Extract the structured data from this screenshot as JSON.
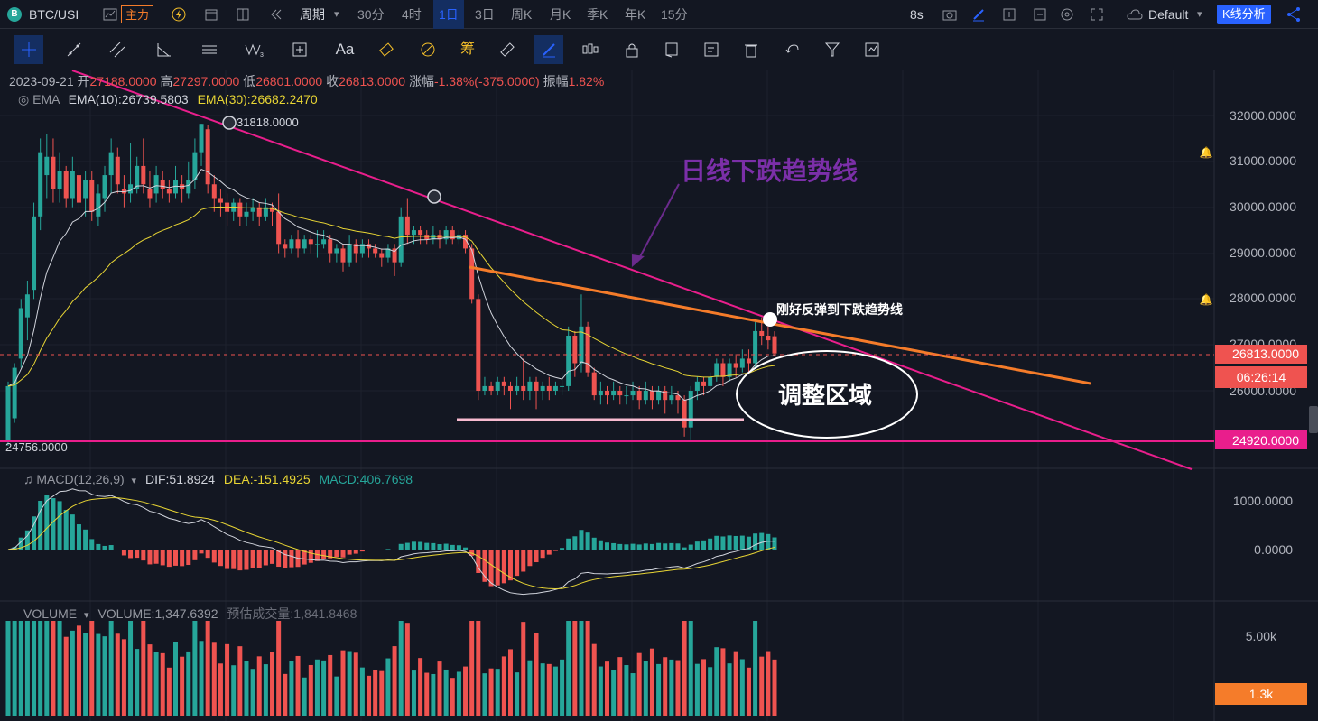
{
  "topbar": {
    "symbol": "BTC/USI",
    "main_indicator": "主力",
    "period_label": "周期",
    "intervals": [
      "30分",
      "4时",
      "1日",
      "3日",
      "周K",
      "月K",
      "季K",
      "年K",
      "15分"
    ],
    "active_interval": "1日",
    "refresh": "8s",
    "layout": "Default",
    "analysis_button": "K线分析"
  },
  "tools": [
    "crosshair-icon",
    "trendline-icon",
    "parallel-channel-icon",
    "angle-icon",
    "horizontal-lines-icon",
    "wave-icon",
    "measure-icon",
    "text-icon",
    "eraser-icon",
    "magnet-icon",
    "fib-icon",
    "ruler-icon",
    "brush-icon",
    "candles-icon",
    "lock-icon",
    "copy-icon",
    "note-icon",
    "trash-icon",
    "undo-icon",
    "filter-icon",
    "snapshot-icon"
  ],
  "text_tool": "Aa",
  "fib_tool": "筹",
  "ohlc": {
    "date": "2023-09-21",
    "open_label": "开",
    "open": "27188.0000",
    "high_label": "高",
    "high": "27297.0000",
    "low_label": "低",
    "low": "26801.0000",
    "close_label": "收",
    "close": "26813.0000",
    "change_label": "涨幅",
    "change": "-1.38%(-375.0000)",
    "amp_label": "振幅",
    "amp": "1.82%"
  },
  "ema": {
    "name": "EMA",
    "ema10": "EMA(10):26739.5803",
    "ema30": "EMA(30):26682.2470"
  },
  "price_axis": [
    "32000.0000",
    "31000.0000",
    "30000.0000",
    "29000.0000",
    "28000.0000",
    "27000.0000",
    "26000.0000"
  ],
  "tags": {
    "last_price": "26813.0000",
    "countdown": "06:26:14",
    "support": "24920.0000",
    "high_mark": "31818.0000",
    "low_mark": "24756.0000"
  },
  "annotations": {
    "downtrend": "日线下跌趋势线",
    "bounce": "刚好反弹到下跌趋势线",
    "zone": "调整区域"
  },
  "macd": {
    "name": "MACD(12,26,9)",
    "dif": "DIF:51.8924",
    "dea": "DEA:-151.4925",
    "macd": "MACD:406.7698",
    "axis": [
      "1000.0000",
      "0.0000"
    ]
  },
  "volume": {
    "name": "VOLUME",
    "value": "VOLUME:1,347.6392",
    "estimate": "预估成交量:1,841.8468",
    "axis_top": "5.00k",
    "tag": "1.3k"
  },
  "colors": {
    "up": "#26a69a",
    "down": "#ef5350",
    "trend_pink": "#e91e8c",
    "orange": "#f57c2a",
    "ema10": "#d1d4dc",
    "ema30": "#e8d534",
    "accent": "#2962ff"
  },
  "chart_data": {
    "type": "candlestick",
    "ohlc": [
      [
        24900,
        26100,
        24800,
        26200
      ],
      [
        25400,
        26500,
        25300,
        26600
      ],
      [
        26700,
        27800,
        26500,
        28000
      ],
      [
        27600,
        28100,
        27100,
        28400
      ],
      [
        28200,
        29800,
        28000,
        30100
      ],
      [
        29800,
        31200,
        29500,
        31500
      ],
      [
        30700,
        31100,
        30200,
        31600
      ],
      [
        31100,
        30400,
        30100,
        31500
      ],
      [
        30400,
        30800,
        30100,
        31200
      ],
      [
        30800,
        30200,
        30000,
        30900
      ],
      [
        30200,
        30800,
        30000,
        31100
      ],
      [
        30700,
        30100,
        29900,
        30900
      ],
      [
        30200,
        30600,
        29800,
        30800
      ],
      [
        30600,
        29900,
        29700,
        30800
      ],
      [
        29800,
        30300,
        29600,
        30500
      ],
      [
        30200,
        30700,
        29900,
        30900
      ],
      [
        30700,
        31200,
        30300,
        31500
      ],
      [
        31100,
        30500,
        30300,
        31300
      ],
      [
        30400,
        30300,
        30000,
        30700
      ],
      [
        30300,
        30500,
        30100,
        31400
      ],
      [
        30400,
        30900,
        30300,
        31100
      ],
      [
        30900,
        30500,
        30300,
        31500
      ],
      [
        30400,
        30200,
        30000,
        30800
      ],
      [
        30300,
        30700,
        30100,
        30900
      ],
      [
        30600,
        30400,
        30200,
        30800
      ],
      [
        30400,
        30300,
        30100,
        30600
      ],
      [
        30300,
        30600,
        30200,
        30900
      ],
      [
        30500,
        30400,
        30100,
        30700
      ],
      [
        30300,
        30600,
        30200,
        31000
      ],
      [
        30600,
        31200,
        30400,
        31500
      ],
      [
        31200,
        31818,
        30900,
        31818
      ],
      [
        31700,
        30500,
        30300,
        31800
      ],
      [
        30500,
        30200,
        29900,
        30700
      ],
      [
        30200,
        30100,
        29800,
        30400
      ],
      [
        30100,
        29900,
        29600,
        30300
      ],
      [
        29900,
        30100,
        29700,
        30200
      ],
      [
        30100,
        29800,
        29600,
        30200
      ],
      [
        29800,
        29900,
        29600,
        30100
      ],
      [
        29900,
        30000,
        29700,
        30200
      ],
      [
        30000,
        29800,
        29600,
        30100
      ],
      [
        29800,
        30000,
        29700,
        30200
      ],
      [
        30000,
        29900,
        29600,
        30100
      ],
      [
        29900,
        29200,
        29000,
        30300
      ],
      [
        29200,
        29100,
        28900,
        29300
      ],
      [
        29100,
        29300,
        29000,
        29400
      ],
      [
        29300,
        29100,
        28900,
        29500
      ],
      [
        29100,
        29300,
        29000,
        29400
      ],
      [
        29300,
        29200,
        29000,
        29400
      ],
      [
        29200,
        29200,
        28900,
        29500
      ],
      [
        29200,
        29300,
        29100,
        29500
      ],
      [
        29300,
        29000,
        28800,
        29400
      ],
      [
        29000,
        29100,
        28800,
        29200
      ],
      [
        29100,
        28800,
        28600,
        29200
      ],
      [
        28800,
        29200,
        28700,
        29400
      ],
      [
        29200,
        29000,
        28800,
        29300
      ],
      [
        29000,
        29200,
        28900,
        29300
      ],
      [
        29200,
        29100,
        28900,
        29300
      ],
      [
        29100,
        29000,
        28900,
        29200
      ],
      [
        29000,
        28900,
        28700,
        29100
      ],
      [
        28900,
        29100,
        28800,
        29200
      ],
      [
        29100,
        28800,
        28500,
        29200
      ],
      [
        28800,
        29800,
        28700,
        30000
      ],
      [
        29800,
        29400,
        29200,
        30200
      ],
      [
        29400,
        29500,
        29200,
        29600
      ],
      [
        29500,
        29400,
        29200,
        29600
      ],
      [
        29400,
        29300,
        29200,
        29500
      ],
      [
        29300,
        29400,
        29200,
        29600
      ],
      [
        29400,
        29300,
        29100,
        29500
      ],
      [
        29300,
        29500,
        29200,
        29600
      ],
      [
        29500,
        29300,
        29200,
        29600
      ],
      [
        29300,
        29400,
        29200,
        29500
      ],
      [
        29400,
        29100,
        29000,
        29500
      ],
      [
        29100,
        28000,
        27900,
        29200
      ],
      [
        28000,
        26000,
        25800,
        28100
      ],
      [
        26000,
        26100,
        25900,
        26300
      ],
      [
        26100,
        26000,
        25900,
        26200
      ],
      [
        26000,
        26200,
        25900,
        26300
      ],
      [
        26200,
        26100,
        25900,
        26300
      ],
      [
        26100,
        26000,
        25600,
        26200
      ],
      [
        26000,
        26100,
        25900,
        26300
      ],
      [
        26100,
        26000,
        25800,
        26700
      ],
      [
        26000,
        26200,
        25800,
        26300
      ],
      [
        26200,
        26000,
        25600,
        26300
      ],
      [
        26000,
        26100,
        25800,
        26200
      ],
      [
        26100,
        26000,
        25800,
        26300
      ],
      [
        26000,
        26100,
        25900,
        26200
      ],
      [
        26100,
        26100,
        25900,
        26400
      ],
      [
        26100,
        27200,
        26000,
        27400
      ],
      [
        27200,
        26600,
        26300,
        27300
      ],
      [
        26600,
        27400,
        26400,
        28100
      ],
      [
        27400,
        26400,
        26300,
        27500
      ],
      [
        26400,
        25900,
        25800,
        26500
      ],
      [
        25900,
        26000,
        25700,
        26200
      ],
      [
        26000,
        25900,
        25700,
        26100
      ],
      [
        25900,
        26000,
        25800,
        26200
      ],
      [
        26000,
        25900,
        25700,
        26100
      ],
      [
        25900,
        25900,
        25700,
        26100
      ],
      [
        25900,
        26000,
        25800,
        26200
      ],
      [
        26000,
        25800,
        25600,
        26100
      ],
      [
        25800,
        26000,
        25700,
        26200
      ],
      [
        26000,
        25800,
        25600,
        26100
      ],
      [
        25800,
        26000,
        25700,
        26100
      ],
      [
        26000,
        25800,
        25500,
        26100
      ],
      [
        25800,
        25900,
        25700,
        26100
      ],
      [
        25900,
        25800,
        25500,
        26000
      ],
      [
        25800,
        25200,
        25000,
        25900
      ],
      [
        25200,
        26000,
        24920,
        26100
      ],
      [
        26000,
        26200,
        25800,
        26300
      ],
      [
        26200,
        26100,
        25900,
        26300
      ],
      [
        26100,
        26300,
        26000,
        26400
      ],
      [
        26300,
        26600,
        26200,
        26700
      ],
      [
        26600,
        26300,
        26100,
        26700
      ],
      [
        26300,
        26600,
        26200,
        26700
      ],
      [
        26600,
        26500,
        26300,
        26800
      ],
      [
        26500,
        26700,
        26400,
        26900
      ],
      [
        26700,
        26600,
        26400,
        26900
      ],
      [
        26600,
        27300,
        26500,
        27500
      ],
      [
        27300,
        27200,
        27000,
        27600
      ],
      [
        27200,
        27100,
        26900,
        27400
      ],
      [
        27188,
        26813,
        26801,
        27297
      ]
    ],
    "ema10_last": 26739.5803,
    "ema30_last": 26682.247,
    "ylim": [
      24700,
      32600
    ]
  }
}
